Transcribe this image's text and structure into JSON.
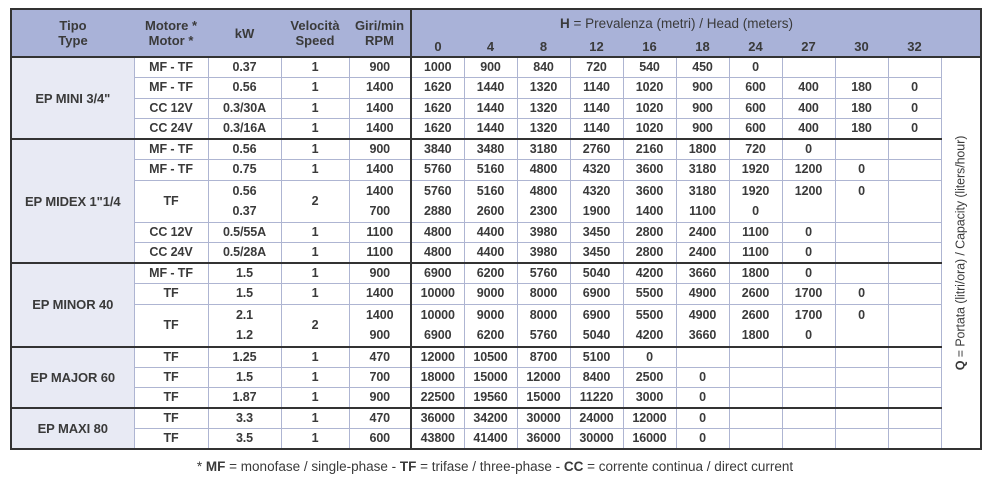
{
  "table": {
    "headers": {
      "tipo": [
        "Tipo",
        "Type"
      ],
      "motore": [
        "Motore *",
        "Motor *"
      ],
      "kw": [
        "kW"
      ],
      "velocita": [
        "Velocità",
        "Speed"
      ],
      "giri": [
        "Giri/min",
        "RPM"
      ]
    },
    "h_title": {
      "segments": [
        {
          "text": "H",
          "bold": true
        },
        {
          "text": " = Prevalenza (metri) / Head (meters)",
          "bold": false
        }
      ]
    },
    "h_columns": [
      "0",
      "4",
      "8",
      "12",
      "16",
      "18",
      "24",
      "27",
      "30",
      "32"
    ],
    "groups": [
      {
        "name": "EP MINI 3/4\"",
        "rows": [
          {
            "motor": "MF - TF",
            "kw": [
              "0.37"
            ],
            "speed": "1",
            "rpm": [
              "900"
            ],
            "h": [
              [
                "1000",
                "900",
                "840",
                "720",
                "540",
                "450",
                "0",
                "",
                "",
                ""
              ]
            ]
          },
          {
            "motor": "MF - TF",
            "kw": [
              "0.56"
            ],
            "speed": "1",
            "rpm": [
              "1400"
            ],
            "h": [
              [
                "1620",
                "1440",
                "1320",
                "1140",
                "1020",
                "900",
                "600",
                "400",
                "180",
                "0"
              ]
            ]
          },
          {
            "motor": "CC 12V",
            "kw": [
              "0.3/30A"
            ],
            "speed": "1",
            "rpm": [
              "1400"
            ],
            "h": [
              [
                "1620",
                "1440",
                "1320",
                "1140",
                "1020",
                "900",
                "600",
                "400",
                "180",
                "0"
              ]
            ]
          },
          {
            "motor": "CC 24V",
            "kw": [
              "0.3/16A"
            ],
            "speed": "1",
            "rpm": [
              "1400"
            ],
            "h": [
              [
                "1620",
                "1440",
                "1320",
                "1140",
                "1020",
                "900",
                "600",
                "400",
                "180",
                "0"
              ]
            ]
          }
        ]
      },
      {
        "name": "EP MIDEX 1\"1/4",
        "rows": [
          {
            "motor": "MF - TF",
            "kw": [
              "0.56"
            ],
            "speed": "1",
            "rpm": [
              "900"
            ],
            "h": [
              [
                "3840",
                "3480",
                "3180",
                "2760",
                "2160",
                "1800",
                "720",
                "0",
                "",
                ""
              ]
            ]
          },
          {
            "motor": "MF - TF",
            "kw": [
              "0.75"
            ],
            "speed": "1",
            "rpm": [
              "1400"
            ],
            "h": [
              [
                "5760",
                "5160",
                "4800",
                "4320",
                "3600",
                "3180",
                "1920",
                "1200",
                "0",
                ""
              ]
            ]
          },
          {
            "motor": "TF",
            "kw": [
              "0.56",
              "0.37"
            ],
            "speed": "2",
            "rpm": [
              "1400",
              "700"
            ],
            "h": [
              [
                "5760",
                "5160",
                "4800",
                "4320",
                "3600",
                "3180",
                "1920",
                "1200",
                "0",
                ""
              ],
              [
                "2880",
                "2600",
                "2300",
                "1900",
                "1400",
                "1100",
                "0",
                "",
                "",
                ""
              ]
            ]
          },
          {
            "motor": "CC 12V",
            "kw": [
              "0.5/55A"
            ],
            "speed": "1",
            "rpm": [
              "1100"
            ],
            "h": [
              [
                "4800",
                "4400",
                "3980",
                "3450",
                "2800",
                "2400",
                "1100",
                "0",
                "",
                ""
              ]
            ]
          },
          {
            "motor": "CC 24V",
            "kw": [
              "0.5/28A"
            ],
            "speed": "1",
            "rpm": [
              "1100"
            ],
            "h": [
              [
                "4800",
                "4400",
                "3980",
                "3450",
                "2800",
                "2400",
                "1100",
                "0",
                "",
                ""
              ]
            ]
          }
        ]
      },
      {
        "name": "EP MINOR 40",
        "rows": [
          {
            "motor": "MF - TF",
            "kw": [
              "1.5"
            ],
            "speed": "1",
            "rpm": [
              "900"
            ],
            "h": [
              [
                "6900",
                "6200",
                "5760",
                "5040",
                "4200",
                "3660",
                "1800",
                "0",
                "",
                ""
              ]
            ]
          },
          {
            "motor": "TF",
            "kw": [
              "1.5"
            ],
            "speed": "1",
            "rpm": [
              "1400"
            ],
            "h": [
              [
                "10000",
                "9000",
                "8000",
                "6900",
                "5500",
                "4900",
                "2600",
                "1700",
                "0",
                ""
              ]
            ]
          },
          {
            "motor": "TF",
            "kw": [
              "2.1",
              "1.2"
            ],
            "speed": "2",
            "rpm": [
              "1400",
              "900"
            ],
            "h": [
              [
                "10000",
                "9000",
                "8000",
                "6900",
                "5500",
                "4900",
                "2600",
                "1700",
                "0",
                ""
              ],
              [
                "6900",
                "6200",
                "5760",
                "5040",
                "4200",
                "3660",
                "1800",
                "0",
                "",
                ""
              ]
            ]
          }
        ]
      },
      {
        "name": "EP MAJOR 60",
        "rows": [
          {
            "motor": "TF",
            "kw": [
              "1.25"
            ],
            "speed": "1",
            "rpm": [
              "470"
            ],
            "h": [
              [
                "12000",
                "10500",
                "8700",
                "5100",
                "0",
                "",
                "",
                "",
                "",
                ""
              ]
            ]
          },
          {
            "motor": "TF",
            "kw": [
              "1.5"
            ],
            "speed": "1",
            "rpm": [
              "700"
            ],
            "h": [
              [
                "18000",
                "15000",
                "12000",
                "8400",
                "2500",
                "0",
                "",
                "",
                "",
                ""
              ]
            ]
          },
          {
            "motor": "TF",
            "kw": [
              "1.87"
            ],
            "speed": "1",
            "rpm": [
              "900"
            ],
            "h": [
              [
                "22500",
                "19560",
                "15000",
                "11220",
                "3000",
                "0",
                "",
                "",
                "",
                ""
              ]
            ]
          }
        ]
      },
      {
        "name": "EP MAXI 80",
        "rows": [
          {
            "motor": "TF",
            "kw": [
              "3.3"
            ],
            "speed": "1",
            "rpm": [
              "470"
            ],
            "h": [
              [
                "36000",
                "34200",
                "30000",
                "24000",
                "12000",
                "0",
                "",
                "",
                "",
                ""
              ]
            ]
          },
          {
            "motor": "TF",
            "kw": [
              "3.5"
            ],
            "speed": "1",
            "rpm": [
              "600"
            ],
            "h": [
              [
                "43800",
                "41400",
                "36000",
                "30000",
                "16000",
                "0",
                "",
                "",
                "",
                ""
              ]
            ]
          }
        ]
      }
    ]
  },
  "q_label": {
    "segments": [
      {
        "text": "Q",
        "bold": true
      },
      {
        "text": " = Portata (litri/ora) / Capacity (liters/hour)",
        "bold": false
      }
    ]
  },
  "footnote": {
    "segments": [
      {
        "text": "* ",
        "bold": false
      },
      {
        "text": "MF",
        "bold": true
      },
      {
        "text": " = monofase / single-phase - ",
        "bold": false
      },
      {
        "text": "TF",
        "bold": true
      },
      {
        "text": " = trifase / three-phase - ",
        "bold": false
      },
      {
        "text": "CC",
        "bold": true
      },
      {
        "text": " = corrente continua / direct current",
        "bold": false
      }
    ]
  },
  "colors": {
    "header_bg": "#a9b2d8",
    "type_column_bg": "#e8eaf4",
    "grid_light": "#aeb5d2",
    "grid_dark": "#333333",
    "text": "#3a3a3a"
  }
}
